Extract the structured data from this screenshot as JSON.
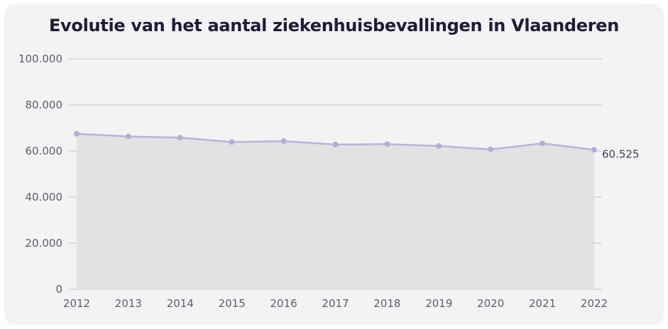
{
  "chart_data": {
    "type": "area",
    "title": "Evolutie van het aantal ziekenhuisbevallingen in Vlaanderen",
    "xlabel": "",
    "ylabel": "",
    "x": [
      "2012",
      "2013",
      "2014",
      "2015",
      "2016",
      "2017",
      "2018",
      "2019",
      "2020",
      "2021",
      "2022"
    ],
    "series": [
      {
        "values": [
          67500,
          66300,
          65800,
          63900,
          64300,
          62800,
          63000,
          62200,
          60700,
          63300,
          60525
        ]
      }
    ],
    "ylim": [
      0,
      100000
    ],
    "yticks": [
      0,
      20000,
      40000,
      60000,
      80000,
      100000
    ],
    "ytick_labels": [
      "0",
      "20.000",
      "40.000",
      "60.000",
      "80.000",
      "100.000"
    ],
    "end_label": "60.525",
    "grid": true,
    "colors": {
      "line": "#b9b3db",
      "marker": "#b4aed8",
      "fill": "#e3e1e2",
      "grid": "#c4c3c8"
    }
  }
}
